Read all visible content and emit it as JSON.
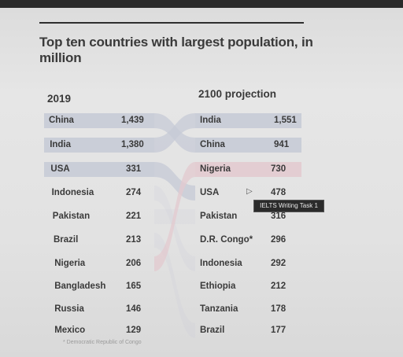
{
  "chart_data": {
    "type": "table",
    "title": "Top ten countries with largest population, in million",
    "columns": [
      "2019",
      "2100 projection"
    ],
    "left": [
      {
        "country": "China",
        "value": "1,439"
      },
      {
        "country": "India",
        "value": "1,380"
      },
      {
        "country": "USA",
        "value": "331"
      },
      {
        "country": "Indonesia",
        "value": "274"
      },
      {
        "country": "Pakistan",
        "value": "221"
      },
      {
        "country": "Brazil",
        "value": "213"
      },
      {
        "country": "Nigeria",
        "value": "206"
      },
      {
        "country": "Bangladesh",
        "value": "165"
      },
      {
        "country": "Russia",
        "value": "146"
      },
      {
        "country": "Mexico",
        "value": "129"
      }
    ],
    "right": [
      {
        "country": "India",
        "value": "1,551"
      },
      {
        "country": "China",
        "value": "941"
      },
      {
        "country": "Nigeria",
        "value": "730"
      },
      {
        "country": "USA",
        "value": "478"
      },
      {
        "country": "Pakistan",
        "value": "316"
      },
      {
        "country": "D.R. Congo*",
        "value": "296"
      },
      {
        "country": "Indonesia",
        "value": "292"
      },
      {
        "country": "Ethiopia",
        "value": "212"
      },
      {
        "country": "Tanzania",
        "value": "178"
      },
      {
        "country": "Brazil",
        "value": "177"
      }
    ],
    "footnote": "* Democratic Republic of Congo",
    "colors": {
      "band": "#c5cad6",
      "nigeria_band": "#e3c9cf",
      "text": "#3a3a3a"
    }
  },
  "tooltip": "IELTS Writing Task 1"
}
